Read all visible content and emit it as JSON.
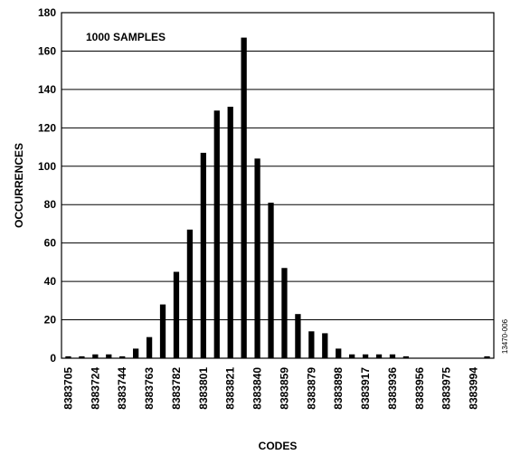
{
  "chart_data": {
    "type": "bar",
    "annotation": "1000 SAMPLES",
    "figure_id": "13470-006",
    "xlabel": "CODES",
    "ylabel": "OCCURRENCES",
    "ylim": [
      0,
      180
    ],
    "yticks": [
      0,
      20,
      40,
      60,
      80,
      100,
      120,
      140,
      160,
      180
    ],
    "grid": true,
    "bar_color": "#000000",
    "x_tick_labels": [
      "8383705",
      "8383724",
      "8383744",
      "8383763",
      "8383782",
      "8383801",
      "8383821",
      "8383840",
      "8383859",
      "8383879",
      "8383898",
      "8383917",
      "8383936",
      "8383956",
      "8383975",
      "8383994"
    ],
    "values": [
      1,
      1,
      2,
      2,
      1,
      5,
      11,
      28,
      45,
      67,
      107,
      129,
      131,
      167,
      104,
      81,
      47,
      23,
      14,
      13,
      5,
      2,
      2,
      2,
      2,
      1,
      0,
      0,
      0,
      0,
      0,
      1
    ]
  }
}
